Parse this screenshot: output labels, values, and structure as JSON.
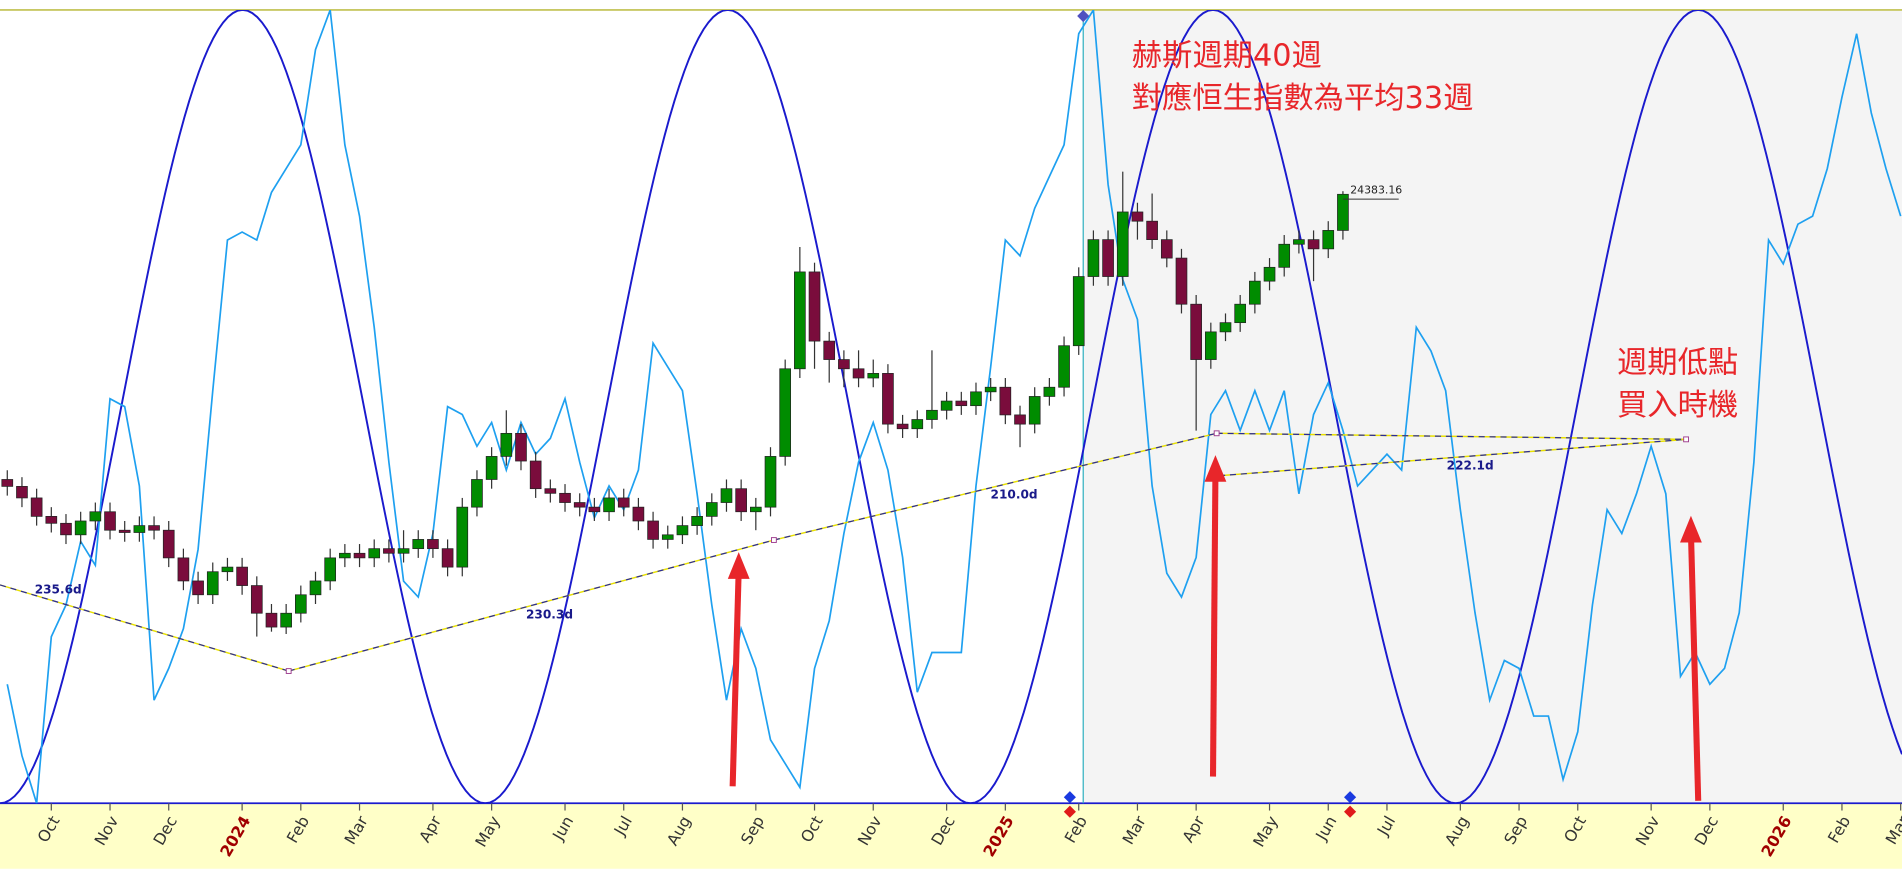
{
  "chart_data": {
    "type": "candlestick",
    "categories": [
      null,
      null,
      null,
      "Oct",
      null,
      null,
      null,
      "Nov",
      null,
      null,
      null,
      "Dec",
      null,
      null,
      null,
      null,
      "2024",
      null,
      null,
      null,
      "Feb",
      null,
      null,
      null,
      "Mar",
      null,
      null,
      null,
      null,
      "Apr",
      null,
      null,
      null,
      "May",
      null,
      null,
      null,
      null,
      "Jun",
      null,
      null,
      null,
      "Jul",
      null,
      null,
      null,
      "Aug",
      null,
      null,
      null,
      null,
      "Sep",
      null,
      null,
      null,
      "Oct",
      null,
      null,
      null,
      "Nov",
      null,
      null,
      null,
      null,
      "Dec",
      null,
      null,
      null,
      "2025",
      null,
      null,
      null,
      null,
      "Feb",
      null,
      null,
      null,
      "Mar",
      null,
      null,
      null,
      "Apr",
      null,
      null,
      null,
      null,
      "May",
      null,
      null,
      null,
      "Jun",
      null,
      null,
      null,
      "Jul",
      null,
      null,
      null,
      null,
      "Aug",
      null,
      null,
      null,
      "Sep",
      null,
      null,
      null,
      "Oct",
      null,
      null,
      null,
      null,
      "Nov",
      null,
      null,
      null,
      "Dec",
      null,
      null,
      null,
      null,
      "2026",
      null,
      null,
      null,
      "Feb",
      null,
      null,
      null,
      "Mar"
    ],
    "candles": {
      "up_color": "#008c00",
      "down_color": "#7a0c3c",
      "open": [
        18200,
        18050,
        17800,
        17400,
        17250,
        17000,
        17300,
        17500,
        17100,
        17050,
        17200,
        17100,
        16500,
        16000,
        15700,
        16200,
        16300,
        15900,
        15300,
        15000,
        15300,
        15700,
        16000,
        16500,
        16600,
        16500,
        16700,
        16600,
        16700,
        16900,
        16700,
        16300,
        17600,
        18200,
        18700,
        19200,
        18600,
        18000,
        17900,
        17700,
        17600,
        17500,
        17800,
        17600,
        17300,
        16900,
        17000,
        17200,
        17400,
        17700,
        18000,
        17500,
        17600,
        18700,
        20600,
        22700,
        21200,
        20800,
        20600,
        20400,
        20500,
        19400,
        19300,
        19500,
        19700,
        19900,
        19800,
        20100,
        20200,
        19600,
        19400,
        20000,
        20200,
        21100,
        22600,
        23400,
        22600,
        24000,
        23800,
        23400,
        23000,
        22000,
        20800,
        21400,
        21600,
        22000,
        22500,
        22800,
        23300,
        23400,
        23200,
        23600
      ],
      "high": [
        18400,
        18250,
        18000,
        17600,
        17450,
        17500,
        17700,
        17700,
        17300,
        17400,
        17400,
        17300,
        16700,
        16200,
        16400,
        16500,
        16500,
        16100,
        15500,
        15500,
        15900,
        16200,
        16700,
        16800,
        16800,
        16900,
        16900,
        17100,
        17100,
        17100,
        16900,
        17800,
        18400,
        18900,
        19700,
        19400,
        18800,
        18200,
        18100,
        17900,
        17800,
        18000,
        18000,
        17800,
        17500,
        17200,
        17400,
        17600,
        17900,
        18200,
        18200,
        17800,
        18900,
        20800,
        23241,
        22900,
        21400,
        21000,
        21000,
        20800,
        20700,
        19600,
        19700,
        21000,
        20100,
        20100,
        20300,
        20400,
        20400,
        19800,
        20200,
        20400,
        21300,
        22800,
        23600,
        23600,
        24874,
        24200,
        24400,
        23600,
        23200,
        22200,
        21600,
        21800,
        22200,
        22700,
        23000,
        23500,
        23600,
        23600,
        23800,
        24450
      ],
      "low": [
        17850,
        17600,
        17200,
        17050,
        16800,
        16800,
        17100,
        16900,
        16850,
        16850,
        16900,
        16300,
        15800,
        15500,
        15500,
        16000,
        15700,
        14794,
        14900,
        14850,
        15100,
        15500,
        15800,
        16300,
        16300,
        16300,
        16400,
        16400,
        16500,
        16500,
        16100,
        16100,
        17400,
        18000,
        18500,
        18400,
        17800,
        17700,
        17500,
        17400,
        17300,
        17300,
        17400,
        17100,
        16700,
        16700,
        16800,
        17000,
        17200,
        17500,
        17300,
        17100,
        17400,
        18500,
        20400,
        20600,
        20300,
        20200,
        20200,
        20200,
        19200,
        19100,
        19100,
        19300,
        19500,
        19600,
        19600,
        19900,
        19400,
        18900,
        19200,
        19800,
        20000,
        20900,
        22400,
        22400,
        22400,
        23400,
        23200,
        22800,
        21800,
        19260,
        20600,
        21200,
        21400,
        21800,
        22300,
        22600,
        23100,
        22500,
        23000,
        23400
      ],
      "close": [
        18050,
        17800,
        17400,
        17250,
        17000,
        17300,
        17500,
        17100,
        17050,
        17200,
        17100,
        16500,
        16000,
        15700,
        16200,
        16300,
        15900,
        15300,
        15000,
        15300,
        15700,
        16000,
        16500,
        16600,
        16500,
        16700,
        16600,
        16700,
        16900,
        16700,
        16300,
        17600,
        18200,
        18700,
        19200,
        18600,
        18000,
        17900,
        17700,
        17600,
        17500,
        17800,
        17600,
        17300,
        16900,
        17000,
        17200,
        17400,
        17700,
        18000,
        17500,
        17600,
        18700,
        20600,
        22700,
        21200,
        20800,
        20600,
        20400,
        20500,
        19400,
        19300,
        19500,
        19700,
        19900,
        19800,
        20100,
        20200,
        19600,
        19400,
        20000,
        20200,
        21100,
        22600,
        23400,
        22600,
        24000,
        23800,
        23400,
        23000,
        22000,
        20800,
        21400,
        21600,
        22000,
        22500,
        22800,
        23300,
        23400,
        23200,
        23600,
        24383.16
      ]
    },
    "oscillator": {
      "color": "#1ea0f0",
      "axis": "y2",
      "values": [
        15,
        6,
        0,
        21,
        25,
        33,
        30,
        51,
        50,
        40,
        13,
        17,
        22,
        32,
        52,
        71,
        72,
        71,
        77,
        80,
        83,
        95,
        100,
        83,
        74,
        60,
        43,
        28,
        26,
        34,
        50,
        49,
        45,
        48,
        42,
        48,
        44,
        46,
        51,
        43,
        36,
        40,
        37,
        42,
        58,
        55,
        52,
        39,
        25,
        13,
        22,
        17,
        8,
        5,
        2,
        17,
        23,
        34,
        43,
        48,
        42,
        31,
        14,
        19,
        19,
        19,
        40,
        55,
        71,
        69,
        75,
        79,
        83,
        97,
        100,
        78,
        66,
        61,
        40,
        29,
        26,
        31,
        49,
        52,
        47,
        52,
        47,
        52,
        39,
        49,
        53,
        47,
        40,
        42,
        44,
        42,
        60,
        57,
        52,
        37,
        24,
        13,
        18,
        17,
        11,
        11,
        3,
        9,
        25,
        37,
        34,
        39,
        45,
        39,
        16,
        19,
        15,
        17,
        24,
        43,
        71,
        68,
        73,
        74,
        80,
        89,
        97,
        87,
        80,
        74
      ]
    },
    "ylim": [
      11180,
      28380
    ],
    "y2lim": [
      0,
      100
    ],
    "cycle_labels": [
      "235.6d",
      "230.3d",
      "210.0d",
      "222.1d"
    ],
    "annotations": [
      "赫斯週期40週",
      "對應恒生指數為平均33週",
      "週期低點",
      "買入時機"
    ]
  }
}
